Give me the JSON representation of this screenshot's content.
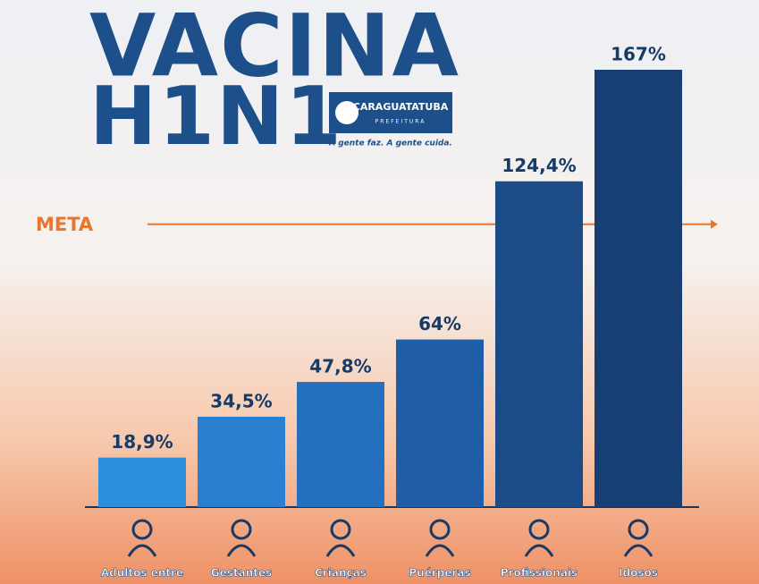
{
  "chart_data": {
    "type": "bar",
    "title": "VACINA",
    "subtitle": "H1N1",
    "logo": {
      "name": "CARAGUATATUBA",
      "sub": "PREFEITURA",
      "slogan": "A gente faz. A gente cuida."
    },
    "categories": [
      "Adultos entre",
      "Gestantes",
      "Crianças",
      "Puérperas",
      "Profissionais",
      "Idosos"
    ],
    "values": [
      18.9,
      34.5,
      47.8,
      64,
      124.4,
      167
    ],
    "value_labels": [
      "18,9%",
      "34,5%",
      "47,8%",
      "64%",
      "124,4%",
      "167%"
    ],
    "colors": [
      "#2b8fde",
      "#2a7fd0",
      "#2470bf",
      "#1f5ea6",
      "#1b4c88",
      "#173f73"
    ],
    "target": {
      "label": "META",
      "value": 108,
      "color": "#e8762c"
    }
  }
}
